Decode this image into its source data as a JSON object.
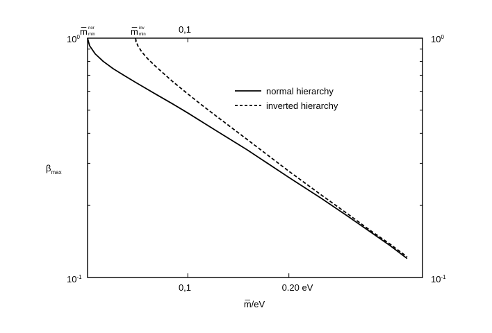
{
  "chart_data": {
    "type": "line",
    "title": "",
    "xlabel": "m̅/eV",
    "ylabel": "β",
    "ylabel_sub": "max",
    "y_scale": "log",
    "ylim": [
      0.1,
      1.0
    ],
    "x_scale": "log",
    "xlim": [
      0.0503,
      0.5
    ],
    "x_ticks_bottom": [
      {
        "value": 0.1,
        "label": "0,1"
      },
      {
        "value": 0.2,
        "label": "0.20 eV"
      }
    ],
    "x_ticks_top": [
      {
        "value": 0.0503,
        "label": "m̅",
        "sup": "nor",
        "sub": "min"
      },
      {
        "value": 0.0699,
        "label": "m̅",
        "sup": "inv",
        "sub": "min"
      },
      {
        "value": 0.1,
        "label": "0,1"
      }
    ],
    "y_ticks_left": [
      {
        "value": 1.0,
        "base": "10",
        "exp": "0"
      },
      {
        "value": 0.1,
        "base": "10",
        "exp": "-1"
      }
    ],
    "y_ticks_right": [
      {
        "value": 1.0,
        "base": "10",
        "exp": "0"
      },
      {
        "value": 0.1,
        "base": "10",
        "exp": "-1"
      }
    ],
    "series": [
      {
        "name": "normal hierarchy",
        "style": "solid",
        "x": [
          0.0503,
          0.051,
          0.053,
          0.056,
          0.06,
          0.065,
          0.07,
          0.08,
          0.09,
          0.1,
          0.12,
          0.15,
          0.2,
          0.25,
          0.3,
          0.35,
          0.4,
          0.45
        ],
        "y": [
          1.0,
          0.93,
          0.86,
          0.8,
          0.745,
          0.695,
          0.653,
          0.585,
          0.532,
          0.487,
          0.415,
          0.342,
          0.262,
          0.214,
          0.18,
          0.155,
          0.136,
          0.12
        ]
      },
      {
        "name": "inverted hierarchy",
        "style": "dashed",
        "x": [
          0.0699,
          0.0702,
          0.071,
          0.073,
          0.076,
          0.08,
          0.09,
          0.1,
          0.11,
          0.12,
          0.15,
          0.2,
          0.25,
          0.3,
          0.35,
          0.4,
          0.45
        ],
        "y": [
          1.0,
          0.97,
          0.93,
          0.875,
          0.82,
          0.765,
          0.66,
          0.585,
          0.526,
          0.479,
          0.378,
          0.278,
          0.221,
          0.184,
          0.157,
          0.138,
          0.122
        ]
      }
    ],
    "legend": {
      "position": "top-right"
    }
  }
}
